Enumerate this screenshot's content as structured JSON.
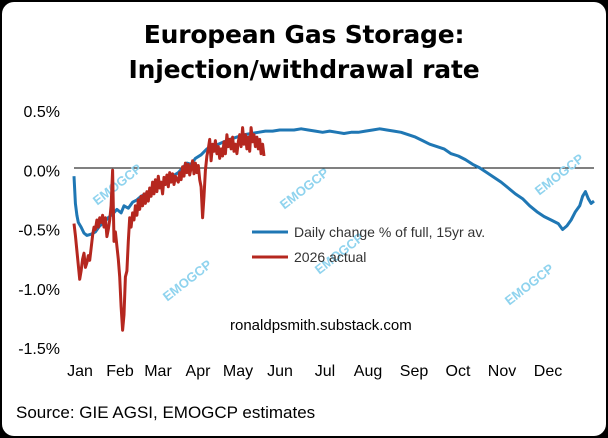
{
  "title": {
    "line1": "European Gas Storage:",
    "line2": "Injection/withdrawal rate"
  },
  "source": "Source: GIE AGSI, EMOGCP estimates",
  "site_label": "ronaldpsmith.substack.com",
  "watermark": "EMOGCP",
  "colors": {
    "avg": "#1f77b4",
    "actual": "#b5271f",
    "watermark": "#8fd3ee"
  },
  "chart_data": {
    "type": "line",
    "x_unit": "day of year",
    "categories": [
      "Jan",
      "Feb",
      "Mar",
      "Apr",
      "May",
      "Jun",
      "Jul",
      "Aug",
      "Sep",
      "Oct",
      "Nov",
      "Dec"
    ],
    "y_ticks": [
      "0.5%",
      "0.0%",
      "-0.5%",
      "-1.0%",
      "-1.5%"
    ],
    "ylim": [
      -1.5,
      0.5
    ],
    "grid": false,
    "legend_position": "center-right",
    "series": [
      {
        "name": "Daily change % of full, 15yr av.",
        "color": "#1f77b4",
        "points": [
          [
            1,
            -0.05
          ],
          [
            2,
            -0.28
          ],
          [
            3,
            -0.38
          ],
          [
            4,
            -0.44
          ],
          [
            6,
            -0.48
          ],
          [
            8,
            -0.53
          ],
          [
            10,
            -0.55
          ],
          [
            13,
            -0.54
          ],
          [
            16,
            -0.52
          ],
          [
            19,
            -0.47
          ],
          [
            22,
            -0.44
          ],
          [
            25,
            -0.4
          ],
          [
            28,
            -0.37
          ],
          [
            31,
            -0.33
          ],
          [
            34,
            -0.36
          ],
          [
            36,
            -0.3
          ],
          [
            39,
            -0.32
          ],
          [
            42,
            -0.27
          ],
          [
            45,
            -0.25
          ],
          [
            48,
            -0.22
          ],
          [
            51,
            -0.2
          ],
          [
            54,
            -0.18
          ],
          [
            57,
            -0.15
          ],
          [
            60,
            -0.14
          ],
          [
            63,
            -0.12
          ],
          [
            66,
            -0.1
          ],
          [
            70,
            -0.05
          ],
          [
            74,
            -0.02
          ],
          [
            77,
            0.02
          ],
          [
            80,
            0.06
          ],
          [
            83,
            0.05
          ],
          [
            86,
            0.1
          ],
          [
            90,
            0.13
          ],
          [
            94,
            0.18
          ],
          [
            98,
            0.2
          ],
          [
            102,
            0.22
          ],
          [
            106,
            0.24
          ],
          [
            110,
            0.26
          ],
          [
            115,
            0.28
          ],
          [
            120,
            0.3
          ],
          [
            125,
            0.31
          ],
          [
            130,
            0.32
          ],
          [
            135,
            0.33
          ],
          [
            140,
            0.33
          ],
          [
            145,
            0.34
          ],
          [
            150,
            0.34
          ],
          [
            155,
            0.34
          ],
          [
            160,
            0.35
          ],
          [
            165,
            0.34
          ],
          [
            170,
            0.33
          ],
          [
            175,
            0.32
          ],
          [
            180,
            0.33
          ],
          [
            185,
            0.32
          ],
          [
            190,
            0.31
          ],
          [
            195,
            0.32
          ],
          [
            200,
            0.32
          ],
          [
            205,
            0.33
          ],
          [
            210,
            0.34
          ],
          [
            215,
            0.35
          ],
          [
            220,
            0.34
          ],
          [
            225,
            0.33
          ],
          [
            230,
            0.32
          ],
          [
            235,
            0.3
          ],
          [
            240,
            0.28
          ],
          [
            245,
            0.25
          ],
          [
            250,
            0.22
          ],
          [
            255,
            0.2
          ],
          [
            260,
            0.18
          ],
          [
            265,
            0.14
          ],
          [
            270,
            0.12
          ],
          [
            275,
            0.09
          ],
          [
            280,
            0.05
          ],
          [
            285,
            0.02
          ],
          [
            290,
            -0.02
          ],
          [
            295,
            -0.06
          ],
          [
            300,
            -0.1
          ],
          [
            305,
            -0.15
          ],
          [
            310,
            -0.2
          ],
          [
            315,
            -0.24
          ],
          [
            320,
            -0.3
          ],
          [
            325,
            -0.35
          ],
          [
            330,
            -0.39
          ],
          [
            335,
            -0.42
          ],
          [
            340,
            -0.45
          ],
          [
            343,
            -0.5
          ],
          [
            346,
            -0.47
          ],
          [
            349,
            -0.42
          ],
          [
            352,
            -0.35
          ],
          [
            355,
            -0.3
          ],
          [
            357,
            -0.22
          ],
          [
            359,
            -0.18
          ],
          [
            361,
            -0.24
          ],
          [
            363,
            -0.28
          ],
          [
            365,
            -0.26
          ]
        ]
      },
      {
        "name": "2026 actual",
        "color": "#b5271f",
        "points": [
          [
            1,
            -0.45
          ],
          [
            2,
            -0.55
          ],
          [
            3,
            -0.68
          ],
          [
            4,
            -0.8
          ],
          [
            5,
            -0.92
          ],
          [
            6,
            -0.85
          ],
          [
            7,
            -0.75
          ],
          [
            8,
            -0.7
          ],
          [
            9,
            -0.82
          ],
          [
            10,
            -0.78
          ],
          [
            11,
            -0.72
          ],
          [
            12,
            -0.76
          ],
          [
            13,
            -0.66
          ],
          [
            14,
            -0.55
          ],
          [
            15,
            -0.48
          ],
          [
            16,
            -0.5
          ],
          [
            17,
            -0.42
          ],
          [
            18,
            -0.48
          ],
          [
            19,
            -0.4
          ],
          [
            20,
            -0.44
          ],
          [
            21,
            -0.38
          ],
          [
            22,
            -0.48
          ],
          [
            23,
            -0.4
          ],
          [
            24,
            -0.56
          ],
          [
            25,
            -0.5
          ],
          [
            26,
            -0.42
          ],
          [
            27,
            -0.3
          ],
          [
            28,
            0.0
          ],
          [
            29,
            -0.6
          ],
          [
            30,
            -0.52
          ],
          [
            31,
            -0.64
          ],
          [
            32,
            -0.75
          ],
          [
            33,
            -0.9
          ],
          [
            34,
            -1.15
          ],
          [
            35,
            -1.35
          ],
          [
            36,
            -1.22
          ],
          [
            37,
            -0.9
          ],
          [
            38,
            -0.85
          ],
          [
            39,
            -0.6
          ],
          [
            40,
            -0.4
          ],
          [
            41,
            -0.48
          ],
          [
            42,
            -0.36
          ],
          [
            43,
            -0.42
          ],
          [
            44,
            -0.3
          ],
          [
            45,
            -0.38
          ],
          [
            46,
            -0.25
          ],
          [
            47,
            -0.33
          ],
          [
            48,
            -0.22
          ],
          [
            49,
            -0.3
          ],
          [
            50,
            -0.2
          ],
          [
            51,
            -0.28
          ],
          [
            52,
            -0.18
          ],
          [
            53,
            -0.26
          ],
          [
            54,
            -0.15
          ],
          [
            55,
            -0.22
          ],
          [
            56,
            -0.1
          ],
          [
            57,
            -0.2
          ],
          [
            58,
            -0.08
          ],
          [
            59,
            -0.18
          ],
          [
            60,
            -0.05
          ],
          [
            61,
            -0.15
          ],
          [
            62,
            -0.1
          ],
          [
            63,
            -0.2
          ],
          [
            64,
            -0.06
          ],
          [
            65,
            -0.12
          ],
          [
            66,
            -0.04
          ],
          [
            67,
            -0.14
          ],
          [
            68,
            -0.02
          ],
          [
            69,
            -0.1
          ],
          [
            70,
            -0.03
          ],
          [
            71,
            -0.12
          ],
          [
            72,
            -0.05
          ],
          [
            73,
            -0.08
          ],
          [
            74,
            -0.1
          ],
          [
            75,
            -0.02
          ],
          [
            76,
            -0.08
          ],
          [
            77,
            0.03
          ],
          [
            78,
            -0.05
          ],
          [
            79,
            0.06
          ],
          [
            80,
            -0.02
          ],
          [
            81,
            0.05
          ],
          [
            82,
            -0.04
          ],
          [
            83,
            0.02
          ],
          [
            84,
            0.08
          ],
          [
            85,
            -0.03
          ],
          [
            86,
            0.06
          ],
          [
            87,
            -0.02
          ],
          [
            88,
            0.04
          ],
          [
            89,
            -0.08
          ],
          [
            90,
            -0.14
          ],
          [
            91,
            -0.4
          ],
          [
            92,
            -0.22
          ],
          [
            93,
            0.0
          ],
          [
            94,
            0.12
          ],
          [
            95,
            0.18
          ],
          [
            96,
            0.26
          ],
          [
            97,
            0.08
          ],
          [
            98,
            0.22
          ],
          [
            99,
            0.16
          ],
          [
            100,
            0.25
          ],
          [
            101,
            0.14
          ],
          [
            102,
            0.2
          ],
          [
            103,
            0.1
          ],
          [
            104,
            0.18
          ],
          [
            105,
            0.12
          ],
          [
            106,
            0.24
          ],
          [
            107,
            0.14
          ],
          [
            108,
            0.3
          ],
          [
            109,
            0.2
          ],
          [
            110,
            0.26
          ],
          [
            111,
            0.18
          ],
          [
            112,
            0.28
          ],
          [
            113,
            0.16
          ],
          [
            114,
            0.22
          ],
          [
            115,
            0.14
          ],
          [
            116,
            0.24
          ],
          [
            117,
            0.3
          ],
          [
            118,
            0.2
          ],
          [
            119,
            0.36
          ],
          [
            120,
            0.22
          ],
          [
            121,
            0.3
          ],
          [
            122,
            0.18
          ],
          [
            123,
            0.28
          ],
          [
            124,
            0.16
          ],
          [
            125,
            0.36
          ],
          [
            126,
            0.24
          ],
          [
            127,
            0.3
          ],
          [
            128,
            0.2
          ],
          [
            129,
            0.28
          ],
          [
            130,
            0.18
          ],
          [
            131,
            0.26
          ],
          [
            132,
            0.14
          ],
          [
            133,
            0.22
          ],
          [
            134,
            0.12
          ]
        ]
      }
    ]
  }
}
